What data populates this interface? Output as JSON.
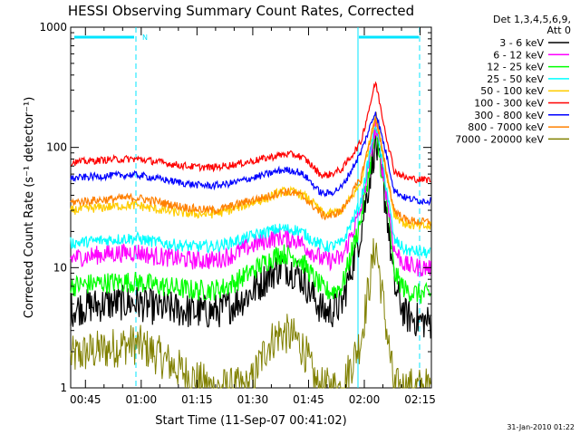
{
  "chart_data": {
    "type": "line",
    "title": "HESSI Observing Summary Count Rates, Corrected",
    "xlabel": "Start Time (11-Sep-07 00:41:02)",
    "ylabel": "Corrected Count Rate (s⁻¹ detector⁻¹)",
    "y_scale": "log",
    "ylim": [
      1,
      1000
    ],
    "xlim_minutes": [
      0,
      97
    ],
    "x_ticks": [
      "00:45",
      "01:00",
      "01:15",
      "01:30",
      "01:45",
      "02:00",
      "02:15"
    ],
    "y_ticks": [
      "1",
      "10",
      "100",
      "1000"
    ],
    "legend_header": [
      "Det 1,3,4,5,6,9,",
      "Att 0"
    ],
    "legend_position": "right",
    "footer_date": "31-Jan-2010 01:22",
    "night_marker": "N",
    "series_x_minutes": [
      0,
      5,
      10,
      15,
      18,
      22,
      28,
      33,
      38,
      41,
      44,
      48,
      53,
      56,
      58,
      61,
      63,
      65,
      66.5,
      68,
      70,
      73,
      78,
      82,
      85,
      87,
      90,
      94,
      97
    ],
    "series": [
      {
        "name": "3 - 6 keV",
        "color": "#000000",
        "values": [
          4.5,
          4.8,
          5,
          5.1,
          5.1,
          4.7,
          4.5,
          4.3,
          4.3,
          4.5,
          5,
          6,
          8.5,
          10,
          10,
          9,
          7.5,
          6,
          5,
          4.3,
          4.3,
          5,
          20,
          110,
          30,
          7,
          4,
          3.6,
          3.5
        ],
        "noise": 0.3
      },
      {
        "name": "6 - 12 keV",
        "color": "#ff00ff",
        "values": [
          12,
          12.5,
          13,
          13.3,
          13.5,
          12.5,
          12,
          11.5,
          11.5,
          12,
          13,
          15,
          17,
          18,
          17.5,
          17,
          15,
          13.5,
          12.5,
          11.5,
          11.5,
          12,
          30,
          150,
          40,
          14,
          10.5,
          10,
          10
        ],
        "noise": 0.16
      },
      {
        "name": "12 - 25 keV",
        "color": "#00ff00",
        "values": [
          7,
          7.3,
          7.5,
          7.6,
          7.6,
          7.2,
          6.8,
          6.5,
          6.5,
          6.8,
          7.5,
          9,
          11.5,
          13,
          13,
          12,
          10.5,
          8.5,
          7.5,
          6.5,
          6.3,
          7,
          25,
          130,
          35,
          9,
          6.5,
          6,
          6
        ],
        "noise": 0.18
      },
      {
        "name": "25 - 50 keV",
        "color": "#00ffff",
        "values": [
          16,
          16.5,
          17,
          17.5,
          17.5,
          16.5,
          15.5,
          15,
          15,
          15.5,
          16.5,
          18,
          20,
          21,
          21,
          20.5,
          19,
          17,
          16,
          15,
          15,
          16,
          35,
          160,
          45,
          17,
          14,
          13.5,
          13
        ],
        "noise": 0.1
      },
      {
        "name": "50 - 100 keV",
        "color": "#ffcc00",
        "values": [
          30,
          31,
          32,
          33,
          33,
          31,
          29,
          28,
          28,
          29,
          31,
          34,
          38,
          42,
          43,
          42,
          39,
          35,
          31,
          28,
          28,
          30,
          50,
          190,
          60,
          28,
          23,
          22,
          22
        ],
        "noise": 0.08
      },
      {
        "name": "100 - 300 keV",
        "color": "#ff0000",
        "values": [
          75,
          77,
          79,
          80,
          80,
          77,
          72,
          69,
          68,
          70,
          72,
          76,
          82,
          86,
          88,
          86,
          80,
          70,
          62,
          58,
          60,
          66,
          110,
          350,
          120,
          64,
          56,
          54,
          54
        ],
        "noise": 0.06
      },
      {
        "name": "300 - 800 keV",
        "color": "#0000ff",
        "values": [
          55,
          57,
          58,
          59,
          59,
          56,
          52,
          49,
          48,
          49,
          51,
          55,
          60,
          64,
          65,
          63,
          58,
          50,
          44,
          41,
          42,
          47,
          90,
          200,
          85,
          44,
          38,
          36,
          36
        ],
        "noise": 0.06
      },
      {
        "name": "800 - 7000 keV",
        "color": "#ff8000",
        "values": [
          35,
          36,
          37,
          38,
          38,
          36,
          33,
          31,
          30,
          31,
          33,
          36,
          39,
          42,
          43,
          41,
          38,
          33,
          30,
          27,
          27,
          30,
          55,
          180,
          60,
          30,
          25,
          24,
          24
        ],
        "noise": 0.07
      },
      {
        "name": "7000 - 20000 keV",
        "color": "#808000",
        "values": [
          1.8,
          2,
          2.1,
          2.3,
          2.3,
          2,
          1.5,
          1.2,
          1,
          1,
          1,
          1,
          2.3,
          2.8,
          2.8,
          2.5,
          2,
          1.3,
          1,
          1,
          1,
          1,
          2.5,
          16,
          3,
          1,
          1,
          1,
          1
        ],
        "noise": 0.35
      }
    ]
  }
}
